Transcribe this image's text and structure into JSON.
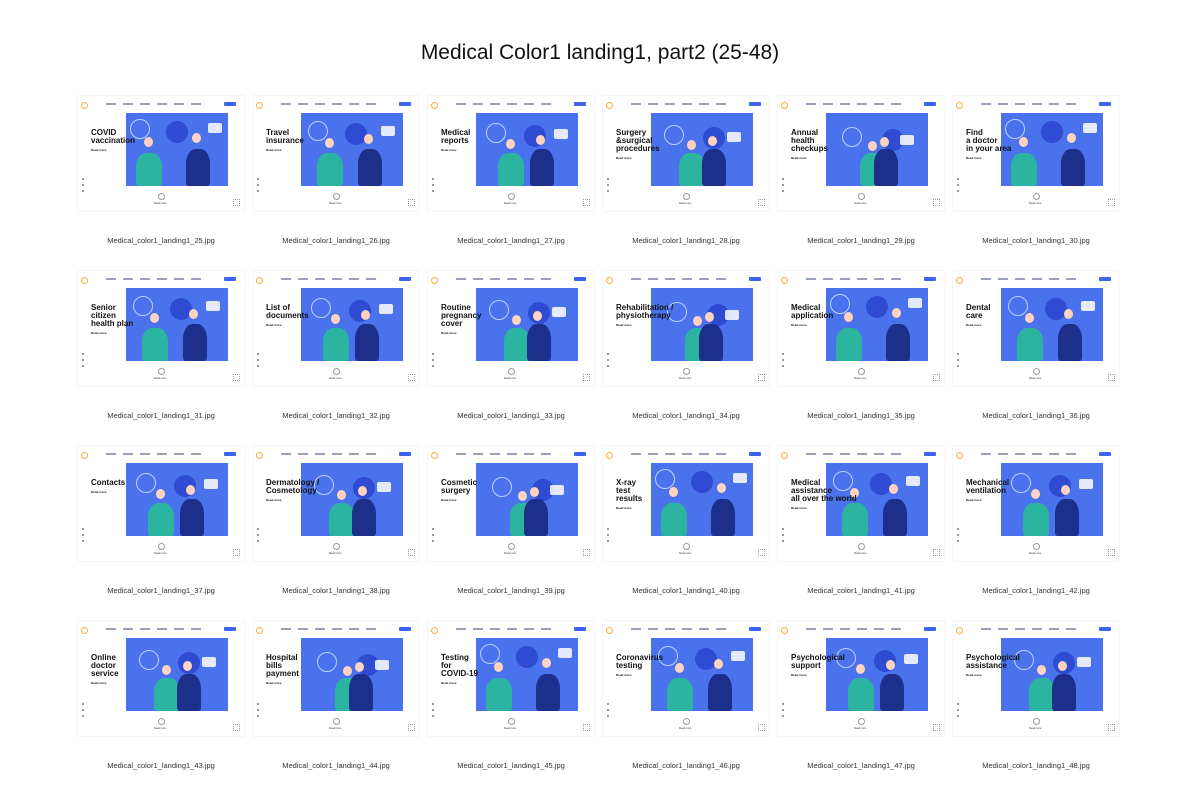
{
  "title": "Medical Color1 landing1, part2 (25-48)",
  "read_more_label": "Read more",
  "colors": {
    "hero": "#4a72ec",
    "accent": "#3d64f0",
    "logo": "#f3b13b"
  },
  "items": [
    {
      "heading": "COVID\nvaccination",
      "caption": "Medical_color1_landing1_25.jpg"
    },
    {
      "heading": "Travel\ninsurance",
      "caption": "Medical_color1_landing1_26.jpg"
    },
    {
      "heading": "Medical\nreports",
      "caption": "Medical_color1_landing1_27.jpg"
    },
    {
      "heading": "Surgery\n&surgical\nprocedures",
      "caption": "Medical_color1_landing1_28.jpg"
    },
    {
      "heading": "Annual\nhealth\ncheckups",
      "caption": "Medical_color1_landing1_29.jpg"
    },
    {
      "heading": "Find\na doctor\nin your area",
      "caption": "Medical_color1_landing1_30.jpg"
    },
    {
      "heading": "Senior\ncitizen\nhealth plan",
      "caption": "Medical_color1_landing1_31.jpg"
    },
    {
      "heading": "List of\ndocuments",
      "caption": "Medical_color1_landing1_32.jpg"
    },
    {
      "heading": "Routine\npregnancy\ncover",
      "caption": "Medical_color1_landing1_33.jpg"
    },
    {
      "heading": "Rehabilitation /\nphysiotherapy",
      "caption": "Medical_color1_landing1_34.jpg"
    },
    {
      "heading": "Medical\napplication",
      "caption": "Medical_color1_landing1_35.jpg"
    },
    {
      "heading": "Dental\ncare",
      "caption": "Medical_color1_landing1_36.jpg"
    },
    {
      "heading": "Contacts",
      "caption": "Medical_color1_landing1_37.jpg"
    },
    {
      "heading": "Dermatology /\nCosmetology",
      "caption": "Medical_color1_landing1_38.jpg"
    },
    {
      "heading": "Cosmetic\nsurgery",
      "caption": "Medical_color1_landing1_39.jpg"
    },
    {
      "heading": "X-ray\ntest\nresults",
      "caption": "Medical_color1_landing1_40.jpg"
    },
    {
      "heading": "Medical\nassistance\nall over the world",
      "caption": "Medical_color1_landing1_41.jpg"
    },
    {
      "heading": "Mechanical\nventilation",
      "caption": "Medical_color1_landing1_42.jpg"
    },
    {
      "heading": "Online\ndoctor\nservice",
      "caption": "Medical_color1_landing1_43.jpg"
    },
    {
      "heading": "Hospital\nbills\npayment",
      "caption": "Medical_color1_landing1_44.jpg"
    },
    {
      "heading": "Testing\nfor\nCOVID-19",
      "caption": "Medical_color1_landing1_45.jpg"
    },
    {
      "heading": "Coronavirus\ntesting",
      "caption": "Medical_color1_landing1_46.jpg"
    },
    {
      "heading": "Psychological\nsupport",
      "caption": "Medical_color1_landing1_47.jpg"
    },
    {
      "heading": "Psychological\nassistance",
      "caption": "Medical_color1_landing1_48.jpg"
    }
  ]
}
